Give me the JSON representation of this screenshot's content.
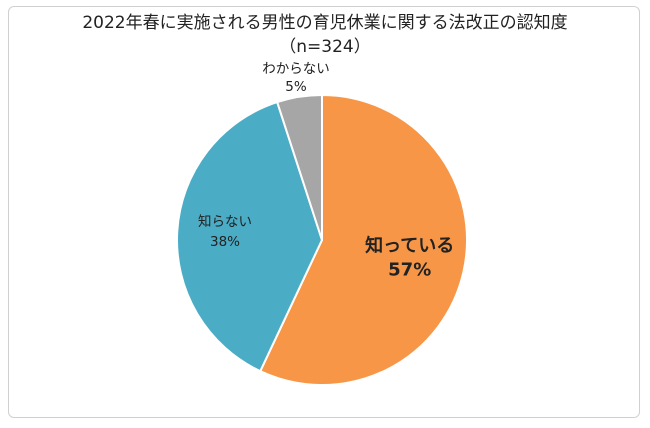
{
  "chart_data": {
    "type": "pie",
    "title": "2022年春に実施される男性の育児休業に関する法改正の認知度",
    "subtitle": "（n=324）",
    "start_angle_deg": 0,
    "direction": "clockwise",
    "legend": "none",
    "slices": [
      {
        "label": "知っている",
        "value": 57,
        "value_label": "57%",
        "color": "#F79646",
        "label_style": "bold-large"
      },
      {
        "label": "知らない",
        "value": 38,
        "value_label": "38%",
        "color": "#4BACC6",
        "label_style": "normal"
      },
      {
        "label": "わからない",
        "value": 5,
        "value_label": "5%",
        "color": "#A6A6A6",
        "label_style": "outside"
      }
    ]
  }
}
